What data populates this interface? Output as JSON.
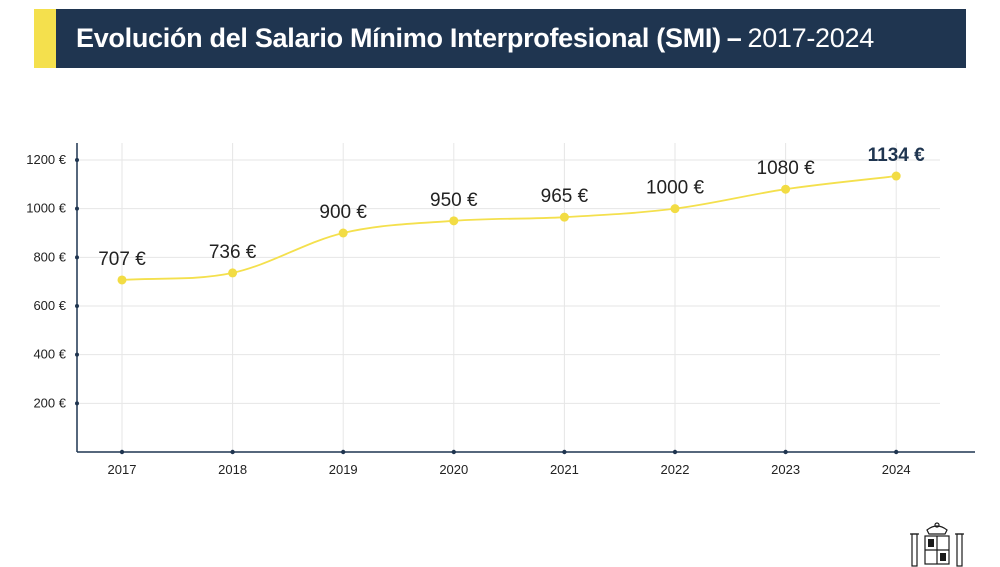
{
  "header": {
    "title": "Evolución del Salario Mínimo Interprofesional (SMI)",
    "separator": "–",
    "years": "2017-2024"
  },
  "colors": {
    "header_bg": "#1f3550",
    "accent": "#f4e04d",
    "line": "#f4e04d",
    "point": "#f2dc44",
    "axis": "#1f3550",
    "grid": "#e6e6e6"
  },
  "chart_data": {
    "type": "line",
    "categories": [
      "2017",
      "2018",
      "2019",
      "2020",
      "2021",
      "2022",
      "2023",
      "2024"
    ],
    "values": [
      707,
      736,
      900,
      950,
      965,
      1000,
      1080,
      1134
    ],
    "data_labels": [
      "707 €",
      "736 €",
      "900 €",
      "950 €",
      "965 €",
      "1000 €",
      "1080 €",
      "1134 €"
    ],
    "highlight_index": 7,
    "y_ticks": [
      200,
      400,
      600,
      800,
      1000,
      1200
    ],
    "y_tick_labels": [
      "200 €",
      "400 €",
      "600 €",
      "800 €",
      "1000 €",
      "1200 €"
    ],
    "ylim": [
      0,
      1200
    ],
    "grid": true,
    "smooth": true,
    "xlabel": "",
    "ylabel": ""
  },
  "emblem": {
    "icon": "coat-of-arms-icon"
  }
}
